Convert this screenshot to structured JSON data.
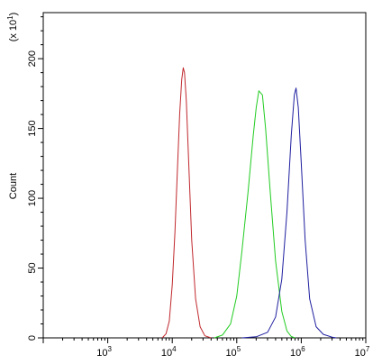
{
  "chart_data": {
    "type": "line",
    "x_scale": "log",
    "xlim": [
      100,
      10000000
    ],
    "ylim": [
      0,
      2330
    ],
    "ylabel": "Count",
    "y_multiplier_label": "(x 10",
    "y_multiplier_exp": "1",
    "y_multiplier_close": ")",
    "y_ticks": [
      0,
      500,
      1000,
      1500,
      2000
    ],
    "y_tick_labels": [
      "0",
      "50",
      "100",
      "150",
      "200"
    ],
    "x_ticks": [
      {
        "value": 1000,
        "base": "10",
        "exp": "3"
      },
      {
        "value": 10000,
        "base": "10",
        "exp": "4"
      },
      {
        "value": 100000,
        "base": "10",
        "exp": "5"
      },
      {
        "value": 1000000,
        "base": "10",
        "exp": "6"
      },
      {
        "value": 10000000,
        "base": "10",
        "exp": "7"
      }
    ],
    "grid": false,
    "legend": "none",
    "series": [
      {
        "color": "#c0282d",
        "points": [
          [
            7000,
            0
          ],
          [
            8000,
            30
          ],
          [
            9000,
            120
          ],
          [
            10000,
            380
          ],
          [
            11000,
            760
          ],
          [
            12000,
            1200
          ],
          [
            13000,
            1600
          ],
          [
            14000,
            1850
          ],
          [
            14800,
            1935
          ],
          [
            15500,
            1900
          ],
          [
            16500,
            1700
          ],
          [
            18000,
            1250
          ],
          [
            20000,
            700
          ],
          [
            23000,
            280
          ],
          [
            27000,
            80
          ],
          [
            32000,
            15
          ],
          [
            40000,
            0
          ]
        ]
      },
      {
        "color": "#22cc22",
        "points": [
          [
            45000,
            0
          ],
          [
            60000,
            20
          ],
          [
            80000,
            100
          ],
          [
            100000,
            300
          ],
          [
            120000,
            620
          ],
          [
            150000,
            1050
          ],
          [
            180000,
            1450
          ],
          [
            200000,
            1650
          ],
          [
            220000,
            1770
          ],
          [
            250000,
            1740
          ],
          [
            280000,
            1500
          ],
          [
            330000,
            1050
          ],
          [
            400000,
            550
          ],
          [
            500000,
            190
          ],
          [
            600000,
            50
          ],
          [
            700000,
            10
          ],
          [
            800000,
            0
          ]
        ]
      },
      {
        "color": "#1f1fa0",
        "points": [
          [
            120000,
            0
          ],
          [
            200000,
            8
          ],
          [
            300000,
            40
          ],
          [
            400000,
            150
          ],
          [
            500000,
            420
          ],
          [
            600000,
            900
          ],
          [
            700000,
            1450
          ],
          [
            780000,
            1740
          ],
          [
            830000,
            1790
          ],
          [
            900000,
            1650
          ],
          [
            1000000,
            1250
          ],
          [
            1150000,
            700
          ],
          [
            1350000,
            280
          ],
          [
            1700000,
            80
          ],
          [
            2200000,
            25
          ],
          [
            3000000,
            5
          ],
          [
            3500000,
            0
          ]
        ]
      }
    ]
  }
}
